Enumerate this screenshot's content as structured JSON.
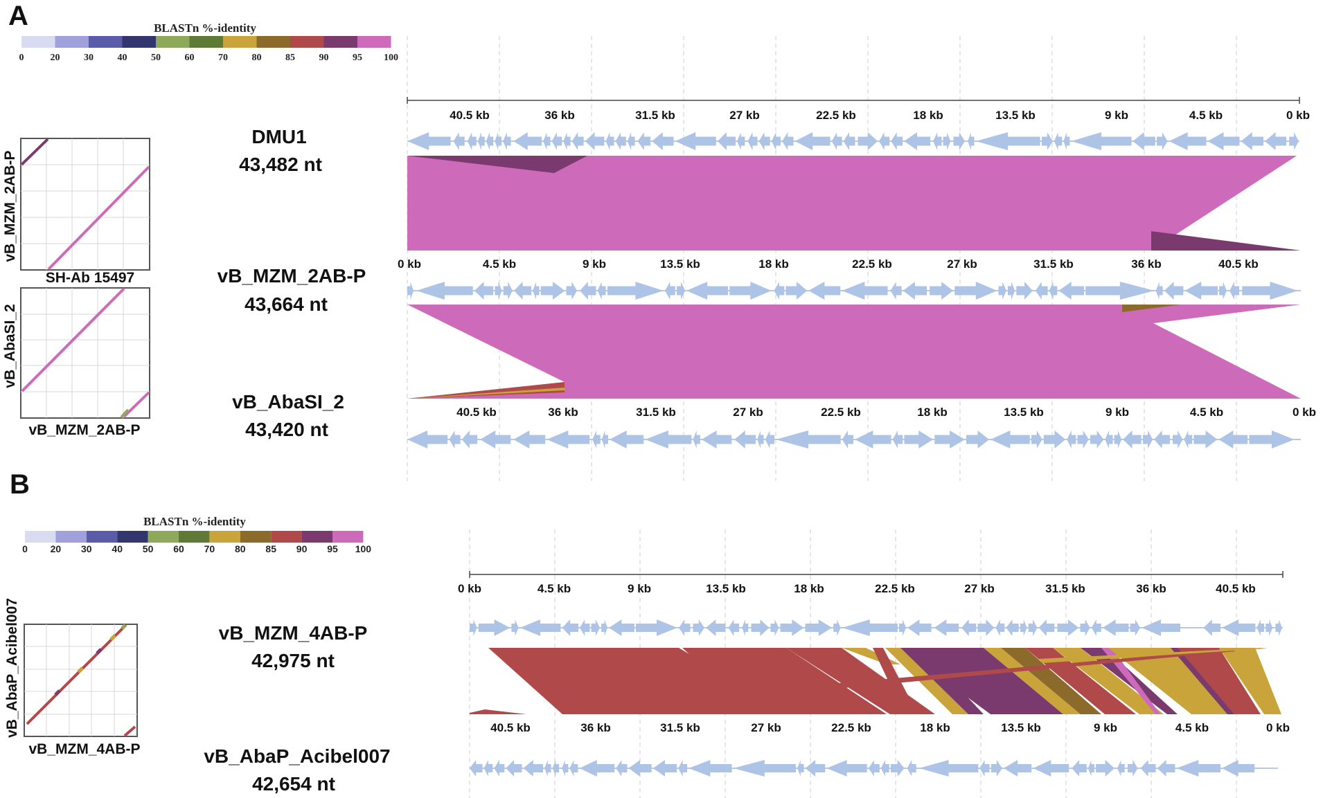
{
  "figure": {
    "panels": [
      {
        "letter": "A",
        "legend": {
          "title": "BLASTn %-identity",
          "ticks": [
            "0",
            "20",
            "30",
            "40",
            "50",
            "60",
            "70",
            "80",
            "85",
            "90",
            "95",
            "100"
          ],
          "colors": [
            "#d9dcf0",
            "#9fa0dc",
            "#5a5caa",
            "#33356f",
            "#8ea95a",
            "#5e7a36",
            "#c9a43a",
            "#8c6a2c",
            "#b04a4a",
            "#7a3a6e",
            "#cd6aba"
          ]
        },
        "dotplots": [
          {
            "x_label": "SH-Ab 15497",
            "y_label": "vB_MZM_2AB-P"
          },
          {
            "x_label": "vB_MZM_2AB-P",
            "y_label": "vB_AbaSI_2"
          }
        ],
        "genomes": [
          {
            "name": "DMU1",
            "length": "43,482 nt",
            "kb_ticks": [
              "40.5 kb",
              "36 kb",
              "31.5 kb",
              "27 kb",
              "22.5 kb",
              "18 kb",
              "13.5 kb",
              "9 kb",
              "4.5 kb",
              "0 kb"
            ]
          },
          {
            "name": "vB_MZM_2AB-P",
            "length": "43,664 nt",
            "kb_ticks": [
              "0 kb",
              "4.5 kb",
              "9 kb",
              "13.5 kb",
              "18 kb",
              "22.5 kb",
              "27 kb",
              "31.5 kb",
              "36 kb",
              "40.5 kb"
            ]
          },
          {
            "name": "vB_AbaSI_2",
            "length": "43,420 nt",
            "kb_ticks": [
              "40.5 kb",
              "36 kb",
              "31.5 kb",
              "27 kb",
              "22.5 kb",
              "18 kb",
              "13.5 kb",
              "9 kb",
              "4.5 kb",
              "0 kb"
            ]
          }
        ]
      },
      {
        "letter": "B",
        "legend": {
          "title": "BLASTn %-identity",
          "ticks": [
            "0",
            "20",
            "30",
            "40",
            "50",
            "60",
            "70",
            "80",
            "85",
            "90",
            "95",
            "100"
          ],
          "colors": [
            "#d9dcf0",
            "#9fa0dc",
            "#5a5caa",
            "#33356f",
            "#8ea95a",
            "#5e7a36",
            "#c9a43a",
            "#8c6a2c",
            "#b04a4a",
            "#7a3a6e",
            "#cd6aba"
          ]
        },
        "dotplots": [
          {
            "x_label": "vB_MZM_4AB-P",
            "y_label": "vB_AbaP_Acibel007"
          }
        ],
        "genomes": [
          {
            "name": "vB_MZM_4AB-P",
            "length": "42,975 nt",
            "kb_ticks": [
              "0 kb",
              "4.5 kb",
              "9 kb",
              "13.5 kb",
              "18 kb",
              "22.5 kb",
              "27 kb",
              "31.5 kb",
              "36 kb",
              "40.5 kb"
            ]
          },
          {
            "name": "vB_AbaP_Acibel007",
            "length": "42,654 nt",
            "kb_ticks": [
              "40.5 kb",
              "36 kb",
              "31.5 kb",
              "27 kb",
              "22.5 kb",
              "18 kb",
              "13.5 kb",
              "9 kb",
              "4.5 kb",
              "0 kb"
            ]
          }
        ]
      }
    ],
    "colors": {
      "gene_arrow": "#aec4e6",
      "identity_100": "#cd6aba",
      "identity_95": "#7a3a6e",
      "identity_90": "#b04a4a",
      "identity_80": "#c9a43a",
      "identity_85": "#8c6a2c"
    }
  }
}
